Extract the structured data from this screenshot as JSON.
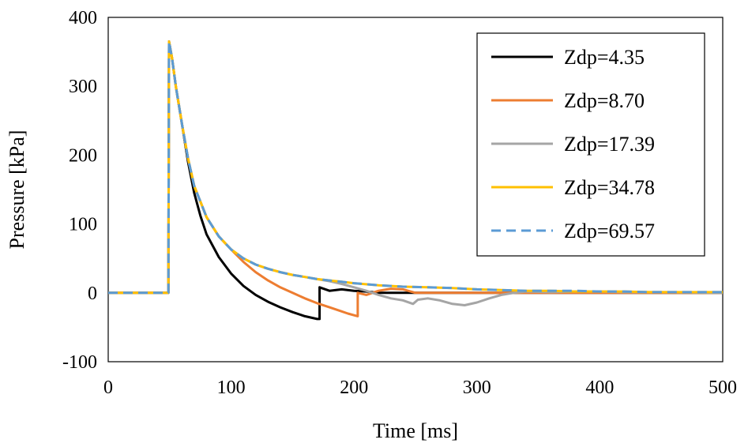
{
  "chart_data": {
    "type": "line",
    "xlabel": "Time [ms]",
    "ylabel": "Pressure [kPa]",
    "xlim": [
      0,
      500
    ],
    "ylim": [
      -100,
      400
    ],
    "x_ticks": [
      "0",
      "100",
      "200",
      "300",
      "400",
      "500"
    ],
    "y_ticks": [
      "-100",
      "0",
      "100",
      "200",
      "300",
      "400"
    ],
    "grid": false,
    "legend_position": "top-right",
    "series": [
      {
        "name": "Zdp=4.35",
        "color": "#000000",
        "dash": "solid",
        "points": [
          [
            0,
            0
          ],
          [
            49,
            0
          ],
          [
            49.5,
            365
          ],
          [
            52,
            340
          ],
          [
            55,
            300
          ],
          [
            60,
            245
          ],
          [
            65,
            190
          ],
          [
            70,
            145
          ],
          [
            75,
            112
          ],
          [
            80,
            85
          ],
          [
            90,
            52
          ],
          [
            100,
            28
          ],
          [
            110,
            10
          ],
          [
            120,
            -3
          ],
          [
            130,
            -13
          ],
          [
            140,
            -21
          ],
          [
            150,
            -28
          ],
          [
            160,
            -34
          ],
          [
            170,
            -38
          ],
          [
            172,
            -38
          ],
          [
            172,
            8
          ],
          [
            180,
            3
          ],
          [
            190,
            5
          ],
          [
            200,
            3
          ],
          [
            210,
            2
          ],
          [
            220,
            0
          ],
          [
            240,
            0
          ],
          [
            260,
            0
          ],
          [
            280,
            0
          ],
          [
            300,
            0
          ],
          [
            320,
            0
          ],
          [
            340,
            0
          ],
          [
            400,
            0
          ],
          [
            450,
            0
          ],
          [
            500,
            0
          ]
        ]
      },
      {
        "name": "Zdp=8.70",
        "color": "#ED7D31",
        "dash": "solid",
        "points": [
          [
            0,
            0
          ],
          [
            49,
            0
          ],
          [
            49.5,
            365
          ],
          [
            52,
            340
          ],
          [
            55,
            300
          ],
          [
            60,
            245
          ],
          [
            65,
            195
          ],
          [
            70,
            155
          ],
          [
            80,
            110
          ],
          [
            90,
            82
          ],
          [
            100,
            63
          ],
          [
            110,
            45
          ],
          [
            120,
            30
          ],
          [
            130,
            18
          ],
          [
            140,
            8
          ],
          [
            150,
            0
          ],
          [
            160,
            -8
          ],
          [
            170,
            -15
          ],
          [
            180,
            -21
          ],
          [
            190,
            -27
          ],
          [
            195,
            -30
          ],
          [
            203,
            -34
          ],
          [
            203,
            0
          ],
          [
            210,
            -3
          ],
          [
            220,
            3
          ],
          [
            230,
            6
          ],
          [
            240,
            5
          ],
          [
            250,
            0
          ],
          [
            270,
            0
          ],
          [
            300,
            0
          ],
          [
            350,
            0
          ],
          [
            400,
            0
          ],
          [
            500,
            0
          ]
        ]
      },
      {
        "name": "Zdp=17.39",
        "color": "#A5A5A5",
        "dash": "solid",
        "points": [
          [
            0,
            0
          ],
          [
            49,
            0
          ],
          [
            49.5,
            365
          ],
          [
            52,
            340
          ],
          [
            55,
            300
          ],
          [
            60,
            245
          ],
          [
            65,
            195
          ],
          [
            70,
            155
          ],
          [
            80,
            110
          ],
          [
            90,
            82
          ],
          [
            100,
            63
          ],
          [
            110,
            50
          ],
          [
            120,
            41
          ],
          [
            130,
            35
          ],
          [
            140,
            30
          ],
          [
            150,
            26
          ],
          [
            160,
            23
          ],
          [
            170,
            20
          ],
          [
            180,
            17
          ],
          [
            190,
            13
          ],
          [
            200,
            8
          ],
          [
            210,
            3
          ],
          [
            220,
            -3
          ],
          [
            230,
            -8
          ],
          [
            240,
            -11
          ],
          [
            248,
            -16
          ],
          [
            252,
            -10
          ],
          [
            260,
            -8
          ],
          [
            270,
            -11
          ],
          [
            280,
            -16
          ],
          [
            290,
            -18
          ],
          [
            300,
            -14
          ],
          [
            310,
            -8
          ],
          [
            320,
            -3
          ],
          [
            330,
            0
          ],
          [
            340,
            2
          ],
          [
            360,
            1
          ],
          [
            380,
            2
          ],
          [
            400,
            2
          ],
          [
            420,
            1
          ],
          [
            450,
            1
          ],
          [
            500,
            0
          ]
        ]
      },
      {
        "name": "Zdp=34.78",
        "color": "#FFC000",
        "dash": "solid",
        "points": [
          [
            0,
            0
          ],
          [
            49,
            0
          ],
          [
            49.5,
            365
          ],
          [
            52,
            340
          ],
          [
            55,
            300
          ],
          [
            60,
            245
          ],
          [
            65,
            195
          ],
          [
            70,
            155
          ],
          [
            80,
            110
          ],
          [
            90,
            82
          ],
          [
            100,
            63
          ],
          [
            110,
            50
          ],
          [
            120,
            41
          ],
          [
            130,
            35
          ],
          [
            140,
            30
          ],
          [
            150,
            26
          ],
          [
            160,
            23
          ],
          [
            170,
            20
          ],
          [
            180,
            18
          ],
          [
            190,
            16
          ],
          [
            200,
            14
          ],
          [
            220,
            11
          ],
          [
            240,
            9
          ],
          [
            260,
            8
          ],
          [
            280,
            7
          ],
          [
            300,
            5
          ],
          [
            320,
            4
          ],
          [
            340,
            3
          ],
          [
            360,
            3
          ],
          [
            380,
            2
          ],
          [
            400,
            2
          ],
          [
            420,
            2
          ],
          [
            440,
            1
          ],
          [
            460,
            1
          ],
          [
            480,
            1
          ],
          [
            500,
            1
          ]
        ]
      },
      {
        "name": "Zdp=69.57",
        "color": "#5B9BD5",
        "dash": "dashed",
        "points": [
          [
            0,
            0
          ],
          [
            49,
            0
          ],
          [
            49.5,
            365
          ],
          [
            52,
            340
          ],
          [
            55,
            300
          ],
          [
            60,
            245
          ],
          [
            65,
            195
          ],
          [
            70,
            155
          ],
          [
            80,
            110
          ],
          [
            90,
            82
          ],
          [
            100,
            63
          ],
          [
            110,
            50
          ],
          [
            120,
            41
          ],
          [
            130,
            35
          ],
          [
            140,
            30
          ],
          [
            150,
            26
          ],
          [
            160,
            23
          ],
          [
            170,
            20
          ],
          [
            180,
            18
          ],
          [
            190,
            16
          ],
          [
            200,
            14
          ],
          [
            220,
            11
          ],
          [
            240,
            9
          ],
          [
            260,
            8
          ],
          [
            280,
            7
          ],
          [
            300,
            5
          ],
          [
            320,
            4
          ],
          [
            340,
            3
          ],
          [
            360,
            3
          ],
          [
            380,
            3
          ],
          [
            400,
            2
          ],
          [
            420,
            2
          ],
          [
            440,
            1
          ],
          [
            460,
            1
          ],
          [
            480,
            1
          ],
          [
            500,
            1
          ]
        ]
      }
    ]
  }
}
